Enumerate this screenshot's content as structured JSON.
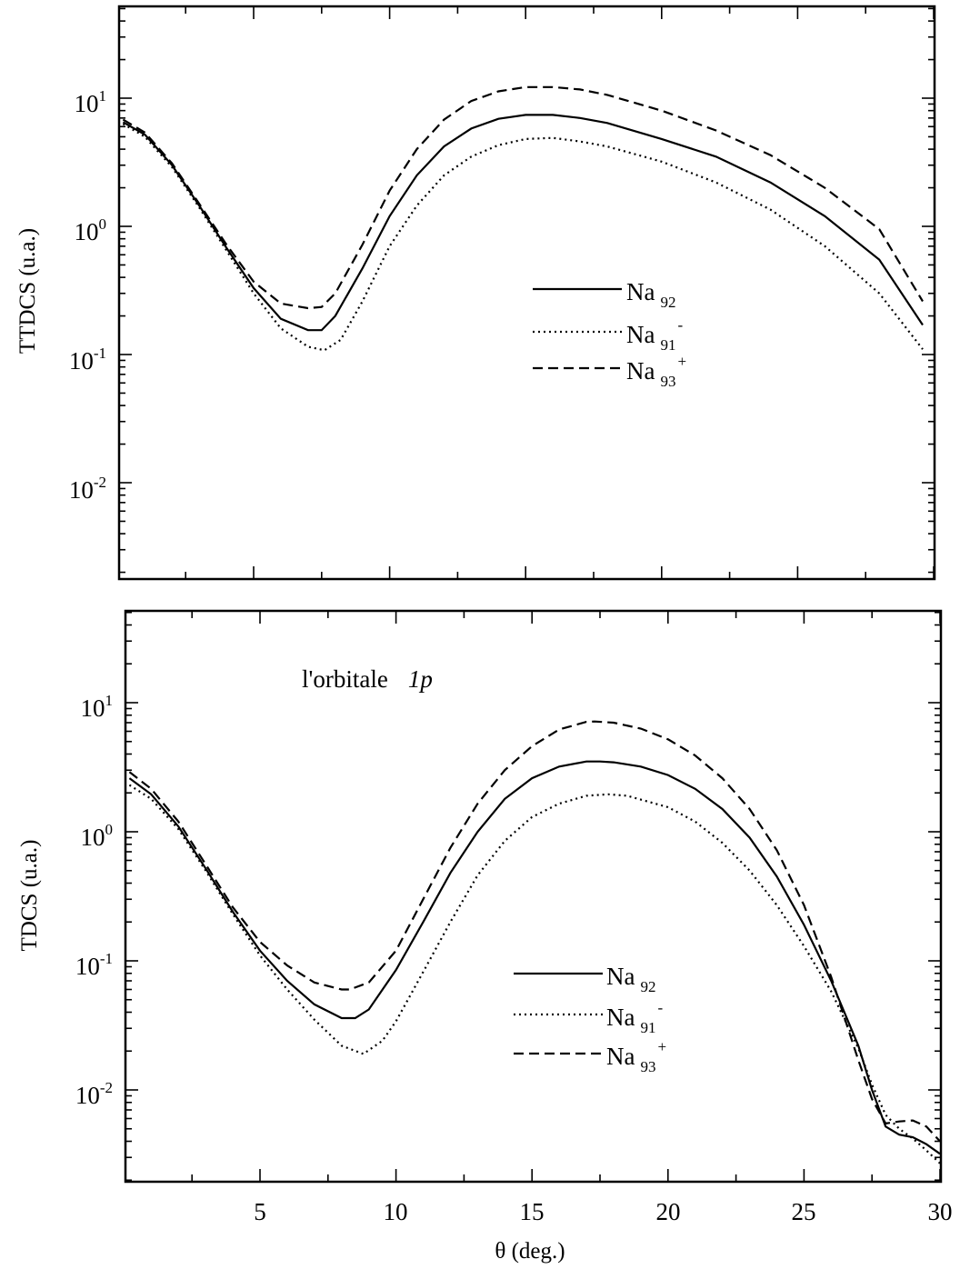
{
  "chart_data": [
    {
      "type": "line",
      "ylabel": "TTDCS (u.a.)",
      "yscale": "log",
      "ylim": [
        0.002,
        50
      ],
      "xlim": [
        0.2,
        30
      ],
      "ytick_bases": [
        "10",
        "10",
        "10",
        "10"
      ],
      "ytick_exps": [
        "1",
        "0",
        "-1",
        "-2"
      ],
      "ytick_values": [
        10,
        1,
        0.1,
        0.01
      ],
      "legend_position": "center-right",
      "series": [
        {
          "name": "Na",
          "sub": "92",
          "sup": "",
          "style": "solid",
          "x": [
            0.2,
            1,
            2,
            3,
            4,
            5,
            6,
            7,
            7.5,
            8,
            9,
            10,
            11,
            12,
            13,
            14,
            15,
            16,
            17,
            18,
            20,
            22,
            24,
            26,
            28,
            29.6
          ],
          "y": [
            6.5,
            5.2,
            3.0,
            1.45,
            0.68,
            0.33,
            0.19,
            0.155,
            0.155,
            0.2,
            0.47,
            1.2,
            2.5,
            4.2,
            5.8,
            6.9,
            7.4,
            7.4,
            7.0,
            6.4,
            4.8,
            3.5,
            2.2,
            1.2,
            0.55,
            0.17
          ]
        },
        {
          "name": "Na",
          "sub": "91",
          "sup": "-",
          "style": "dotted",
          "x": [
            0.2,
            1,
            2,
            3,
            4,
            5,
            6,
            7,
            7.6,
            8.2,
            9,
            10,
            11,
            12,
            13,
            14,
            15,
            16,
            17,
            18,
            20,
            22,
            24,
            26,
            28,
            29.6
          ],
          "y": [
            6.3,
            5.0,
            2.9,
            1.4,
            0.65,
            0.3,
            0.16,
            0.115,
            0.108,
            0.13,
            0.26,
            0.7,
            1.45,
            2.5,
            3.5,
            4.3,
            4.8,
            4.9,
            4.6,
            4.2,
            3.2,
            2.2,
            1.35,
            0.7,
            0.3,
            0.11
          ]
        },
        {
          "name": "Na",
          "sub": "93",
          "sup": "+",
          "style": "dashed",
          "x": [
            0.2,
            1,
            2,
            3,
            4,
            5,
            6,
            7,
            7.5,
            8,
            9,
            10,
            11,
            12,
            13,
            14,
            15,
            16,
            17,
            18,
            20,
            22,
            24,
            26,
            28,
            29.6
          ],
          "y": [
            6.8,
            5.4,
            3.1,
            1.5,
            0.72,
            0.37,
            0.25,
            0.23,
            0.235,
            0.3,
            0.72,
            1.9,
            4.0,
            6.8,
            9.5,
            11.3,
            12.2,
            12.2,
            11.7,
            10.6,
            8.0,
            5.6,
            3.6,
            2.0,
            0.95,
            0.26
          ]
        }
      ]
    },
    {
      "type": "line",
      "ylabel": "TDCS (u.a.)",
      "xlabel": "θ (deg.)",
      "yscale": "log",
      "ylim": [
        0.0025,
        50
      ],
      "xlim": [
        0.2,
        30
      ],
      "xtick_values": [
        5,
        10,
        15,
        20,
        25,
        30
      ],
      "xtick_labels": [
        "5",
        "10",
        "15",
        "20",
        "25",
        "30"
      ],
      "ytick_bases": [
        "10",
        "10",
        "10",
        "10"
      ],
      "ytick_exps": [
        "1",
        "0",
        "-1",
        "-2"
      ],
      "ytick_values": [
        10,
        1,
        0.1,
        0.01
      ],
      "annotation": {
        "text": "l'orbitale",
        "italic": "1p"
      },
      "legend_position": "bottom-center",
      "series": [
        {
          "name": "Na",
          "sub": "92",
          "sup": "",
          "style": "solid",
          "x": [
            0.2,
            1,
            2,
            3,
            4,
            5,
            6,
            7,
            8,
            8.5,
            9,
            10,
            11,
            12,
            13,
            14,
            15,
            16,
            17,
            17.5,
            18,
            19,
            20,
            21,
            22,
            23,
            24,
            25,
            26,
            27,
            27.5,
            28,
            28.5,
            29,
            29.5,
            30
          ],
          "y": [
            2.6,
            1.95,
            1.1,
            0.52,
            0.24,
            0.12,
            0.07,
            0.046,
            0.036,
            0.036,
            0.042,
            0.085,
            0.2,
            0.48,
            1.0,
            1.8,
            2.6,
            3.2,
            3.5,
            3.5,
            3.45,
            3.2,
            2.75,
            2.15,
            1.5,
            0.9,
            0.45,
            0.19,
            0.07,
            0.022,
            0.01,
            0.0052,
            0.0045,
            0.0043,
            0.0038,
            0.0032
          ]
        },
        {
          "name": "Na",
          "sub": "91",
          "sup": "-",
          "style": "dotted",
          "x": [
            0.2,
            1,
            2,
            3,
            4,
            5,
            6,
            7,
            8,
            8.8,
            9.5,
            10,
            11,
            12,
            13,
            14,
            15,
            16,
            17,
            17.8,
            18.5,
            20,
            21,
            22,
            23,
            24,
            25,
            26,
            27,
            27.5,
            28,
            28.5,
            29,
            29.5,
            30
          ],
          "y": [
            2.3,
            1.8,
            1.05,
            0.5,
            0.23,
            0.11,
            0.06,
            0.035,
            0.022,
            0.019,
            0.024,
            0.034,
            0.082,
            0.2,
            0.46,
            0.85,
            1.3,
            1.65,
            1.9,
            1.95,
            1.9,
            1.55,
            1.2,
            0.82,
            0.5,
            0.27,
            0.13,
            0.058,
            0.021,
            0.011,
            0.0064,
            0.005,
            0.0042,
            0.0034,
            0.0027
          ]
        },
        {
          "name": "Na",
          "sub": "93",
          "sup": "+",
          "style": "dashed",
          "x": [
            0.2,
            1,
            2,
            3,
            4,
            5,
            6,
            7,
            8,
            8.3,
            9,
            10,
            11,
            12,
            13,
            14,
            15,
            16,
            17,
            17.3,
            18,
            19,
            20,
            21,
            22,
            23,
            24,
            25,
            26,
            27,
            27.5,
            28,
            28.5,
            29,
            29.5,
            30
          ],
          "y": [
            2.9,
            2.15,
            1.2,
            0.56,
            0.26,
            0.14,
            0.092,
            0.068,
            0.06,
            0.06,
            0.068,
            0.12,
            0.3,
            0.75,
            1.65,
            3.0,
            4.6,
            6.2,
            7.1,
            7.15,
            7.0,
            6.3,
            5.2,
            3.9,
            2.6,
            1.5,
            0.72,
            0.27,
            0.075,
            0.017,
            0.0085,
            0.0055,
            0.0057,
            0.0058,
            0.0052,
            0.004
          ]
        }
      ]
    }
  ]
}
